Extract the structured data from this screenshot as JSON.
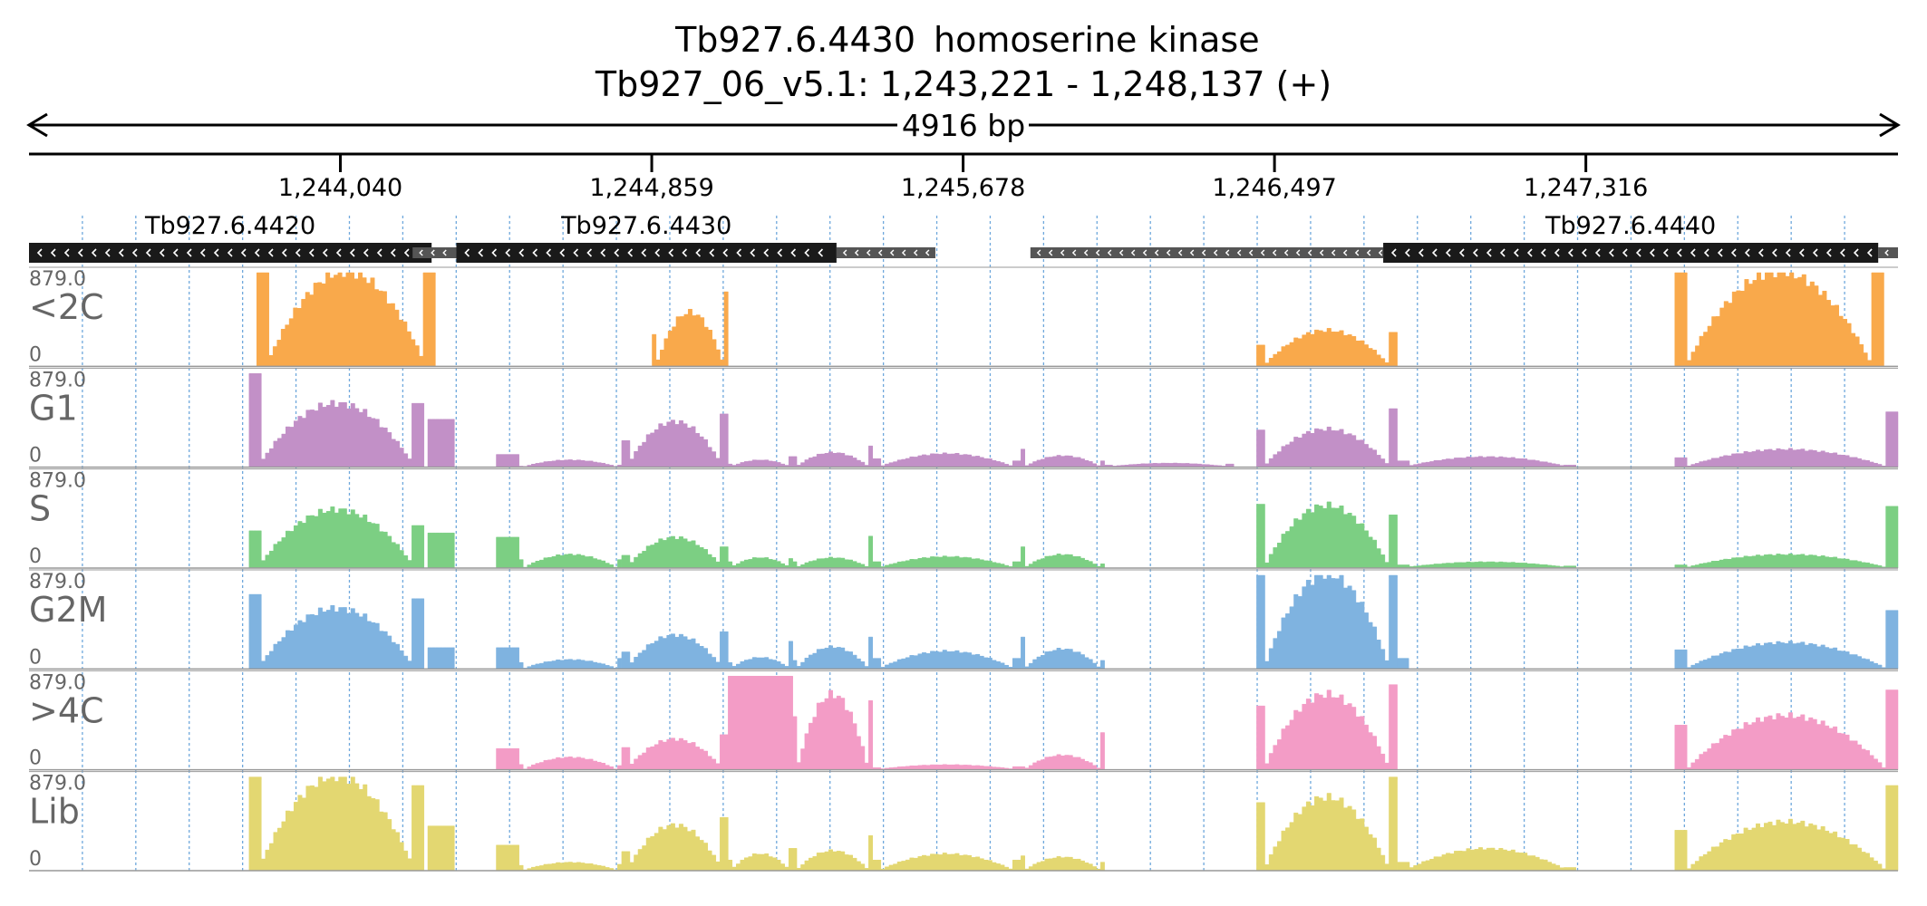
{
  "header": {
    "title_gene": "Tb927.6.4430",
    "title_product": "homoserine kinase",
    "location": "Tb927_06_v5.1: 1,243,221 - 1,248,137 (+)",
    "span_label": "4916 bp"
  },
  "colors": {
    "axis": "#000000",
    "grid": "#6fa8dc",
    "gene_body": "#1a1a1a",
    "gene_utr": "#555555",
    "track_label": "#666666",
    "clip_marker": "#a0283c"
  },
  "chart_data": {
    "type": "area",
    "x_range": [
      1243221,
      1248137
    ],
    "x_ticks": [
      1244040,
      1244859,
      1245678,
      1246497,
      1247316
    ],
    "x_tick_labels": [
      "1,244,040",
      "1,244,859",
      "1,245,678",
      "1,246,497",
      "1,247,316"
    ],
    "y_range": [
      0,
      879.0
    ],
    "y_max_label": "879.0",
    "y_min_label": "0",
    "grid": true,
    "genes": [
      {
        "name": "Tb927.6.4420",
        "strand": "-",
        "cds": [
          1243221,
          1244280
        ],
        "utr": [
          [
            1244280,
            1244330
          ]
        ]
      },
      {
        "name": "Tb927.6.4430",
        "strand": "-",
        "cds": [
          1244345,
          1245345
        ],
        "utr": [
          [
            1244230,
            1244345
          ],
          [
            1245345,
            1245605
          ]
        ]
      },
      {
        "name": "Tb927.6.4440",
        "strand": "-",
        "cds": [
          1246783,
          1248085
        ],
        "utr": [
          [
            1245855,
            1246783
          ],
          [
            1248085,
            1248137
          ]
        ]
      }
    ],
    "series": [
      {
        "name": "<2C",
        "color": "#f9a94b",
        "islands": [
          {
            "start": 1243820,
            "end": 1244290,
            "shape": "hump",
            "left_edge": 879,
            "peak": 879,
            "right_edge": 879
          },
          {
            "start": 1244860,
            "end": 1245060,
            "shape": "hump",
            "left_edge": 300,
            "peak": 500,
            "right_edge": 700
          },
          {
            "start": 1246450,
            "end": 1246820,
            "shape": "hump",
            "left_edge": 200,
            "peak": 330,
            "right_edge": 320
          },
          {
            "start": 1247550,
            "end": 1248100,
            "shape": "hump",
            "left_edge": 879,
            "peak": 879,
            "right_edge": 879
          }
        ]
      },
      {
        "name": "G1",
        "color": "#c290c7",
        "islands": [
          {
            "start": 1243800,
            "end": 1244260,
            "shape": "hump",
            "left_edge": 879,
            "peak": 590,
            "right_edge": 600
          },
          {
            "start": 1244270,
            "end": 1244340,
            "shape": "flat",
            "level": 450
          },
          {
            "start": 1244450,
            "end": 1244510,
            "shape": "flat",
            "level": 120
          },
          {
            "start": 1244510,
            "end": 1244780,
            "shape": "hump",
            "left_edge": 10,
            "peak": 60,
            "right_edge": 20
          },
          {
            "start": 1244780,
            "end": 1245060,
            "shape": "hump",
            "left_edge": 250,
            "peak": 420,
            "right_edge": 500
          },
          {
            "start": 1245060,
            "end": 1245230,
            "shape": "hump",
            "left_edge": 30,
            "peak": 60,
            "right_edge": 100
          },
          {
            "start": 1245230,
            "end": 1245440,
            "shape": "hump",
            "left_edge": 100,
            "peak": 130,
            "right_edge": 200
          },
          {
            "start": 1245440,
            "end": 1245830,
            "shape": "hump",
            "left_edge": 80,
            "peak": 120,
            "right_edge": 60
          },
          {
            "start": 1245830,
            "end": 1246050,
            "shape": "hump",
            "left_edge": 170,
            "peak": 100,
            "right_edge": 60
          },
          {
            "start": 1246050,
            "end": 1246390,
            "shape": "hump",
            "left_edge": 20,
            "peak": 30,
            "right_edge": 30
          },
          {
            "start": 1246450,
            "end": 1246820,
            "shape": "hump",
            "left_edge": 350,
            "peak": 350,
            "right_edge": 550
          },
          {
            "start": 1246820,
            "end": 1247290,
            "shape": "hump",
            "left_edge": 60,
            "peak": 90,
            "right_edge": 20
          },
          {
            "start": 1247550,
            "end": 1248137,
            "shape": "hump",
            "left_edge": 90,
            "peak": 160,
            "right_edge": 520
          }
        ]
      },
      {
        "name": "S",
        "color": "#7ccf83",
        "islands": [
          {
            "start": 1243800,
            "end": 1244260,
            "shape": "hump",
            "left_edge": 350,
            "peak": 540,
            "right_edge": 400
          },
          {
            "start": 1244270,
            "end": 1244340,
            "shape": "flat",
            "level": 330
          },
          {
            "start": 1244450,
            "end": 1244510,
            "shape": "flat",
            "level": 290
          },
          {
            "start": 1244510,
            "end": 1244780,
            "shape": "hump",
            "left_edge": 80,
            "peak": 120,
            "right_edge": 80
          },
          {
            "start": 1244780,
            "end": 1245060,
            "shape": "hump",
            "left_edge": 120,
            "peak": 280,
            "right_edge": 200
          },
          {
            "start": 1245060,
            "end": 1245230,
            "shape": "hump",
            "left_edge": 60,
            "peak": 90,
            "right_edge": 90
          },
          {
            "start": 1245230,
            "end": 1245440,
            "shape": "hump",
            "left_edge": 60,
            "peak": 90,
            "right_edge": 300
          },
          {
            "start": 1245440,
            "end": 1245830,
            "shape": "hump",
            "left_edge": 60,
            "peak": 100,
            "right_edge": 60
          },
          {
            "start": 1245830,
            "end": 1246050,
            "shape": "hump",
            "left_edge": 200,
            "peak": 120,
            "right_edge": 40
          },
          {
            "start": 1246450,
            "end": 1246820,
            "shape": "hump",
            "left_edge": 600,
            "peak": 580,
            "right_edge": 500
          },
          {
            "start": 1246820,
            "end": 1247290,
            "shape": "hump",
            "left_edge": 30,
            "peak": 50,
            "right_edge": 20
          },
          {
            "start": 1247550,
            "end": 1248137,
            "shape": "hump",
            "left_edge": 30,
            "peak": 120,
            "right_edge": 580
          }
        ]
      },
      {
        "name": "G2M",
        "color": "#7fb3e0",
        "islands": [
          {
            "start": 1243800,
            "end": 1244260,
            "shape": "hump",
            "left_edge": 700,
            "peak": 560,
            "right_edge": 660
          },
          {
            "start": 1244270,
            "end": 1244340,
            "shape": "flat",
            "level": 200
          },
          {
            "start": 1244450,
            "end": 1244510,
            "shape": "flat",
            "level": 200
          },
          {
            "start": 1244510,
            "end": 1244780,
            "shape": "hump",
            "left_edge": 60,
            "peak": 80,
            "right_edge": 100
          },
          {
            "start": 1244780,
            "end": 1245060,
            "shape": "hump",
            "left_edge": 160,
            "peak": 310,
            "right_edge": 350
          },
          {
            "start": 1245060,
            "end": 1245230,
            "shape": "hump",
            "left_edge": 60,
            "peak": 100,
            "right_edge": 260
          },
          {
            "start": 1245230,
            "end": 1245440,
            "shape": "hump",
            "left_edge": 80,
            "peak": 200,
            "right_edge": 300
          },
          {
            "start": 1245440,
            "end": 1245830,
            "shape": "hump",
            "left_edge": 100,
            "peak": 160,
            "right_edge": 100
          },
          {
            "start": 1245830,
            "end": 1246050,
            "shape": "hump",
            "left_edge": 300,
            "peak": 180,
            "right_edge": 80
          },
          {
            "start": 1246450,
            "end": 1246820,
            "shape": "hump",
            "left_edge": 879,
            "peak": 879,
            "right_edge": 879
          },
          {
            "start": 1246820,
            "end": 1246850,
            "shape": "flat",
            "level": 100
          },
          {
            "start": 1247550,
            "end": 1248137,
            "shape": "hump",
            "left_edge": 180,
            "peak": 240,
            "right_edge": 550
          }
        ]
      },
      {
        "name": ">4C",
        "color": "#f39cc6",
        "islands": [
          {
            "start": 1244450,
            "end": 1244510,
            "shape": "flat",
            "level": 200
          },
          {
            "start": 1244510,
            "end": 1244780,
            "shape": "hump",
            "left_edge": 50,
            "peak": 110,
            "right_edge": 40
          },
          {
            "start": 1244780,
            "end": 1245060,
            "shape": "hump",
            "left_edge": 210,
            "peak": 280,
            "right_edge": 330
          },
          {
            "start": 1245060,
            "end": 1245230,
            "shape": "flat",
            "level": 879
          },
          {
            "start": 1245230,
            "end": 1245440,
            "shape": "hump",
            "left_edge": 500,
            "peak": 700,
            "right_edge": 650
          },
          {
            "start": 1245440,
            "end": 1245830,
            "shape": "hump",
            "left_edge": 20,
            "peak": 40,
            "right_edge": 30
          },
          {
            "start": 1245830,
            "end": 1246050,
            "shape": "hump",
            "left_edge": 30,
            "peak": 130,
            "right_edge": 350
          },
          {
            "start": 1246450,
            "end": 1246820,
            "shape": "hump",
            "left_edge": 600,
            "peak": 700,
            "right_edge": 800
          },
          {
            "start": 1247550,
            "end": 1248137,
            "shape": "hump",
            "left_edge": 420,
            "peak": 500,
            "right_edge": 750
          }
        ]
      },
      {
        "name": "Lib",
        "color": "#e3d771",
        "islands": [
          {
            "start": 1243800,
            "end": 1244260,
            "shape": "hump",
            "left_edge": 879,
            "peak": 879,
            "right_edge": 800
          },
          {
            "start": 1244270,
            "end": 1244340,
            "shape": "flat",
            "level": 420
          },
          {
            "start": 1244450,
            "end": 1244510,
            "shape": "flat",
            "level": 240
          },
          {
            "start": 1244510,
            "end": 1244780,
            "shape": "hump",
            "left_edge": 50,
            "peak": 70,
            "right_edge": 60
          },
          {
            "start": 1244780,
            "end": 1245060,
            "shape": "hump",
            "left_edge": 180,
            "peak": 420,
            "right_edge": 500
          },
          {
            "start": 1245060,
            "end": 1245230,
            "shape": "hump",
            "left_edge": 100,
            "peak": 150,
            "right_edge": 210
          },
          {
            "start": 1245230,
            "end": 1245440,
            "shape": "hump",
            "left_edge": 210,
            "peak": 180,
            "right_edge": 330
          },
          {
            "start": 1245440,
            "end": 1245830,
            "shape": "hump",
            "left_edge": 100,
            "peak": 150,
            "right_edge": 100
          },
          {
            "start": 1245830,
            "end": 1246050,
            "shape": "hump",
            "left_edge": 140,
            "peak": 120,
            "right_edge": 80
          },
          {
            "start": 1246450,
            "end": 1246820,
            "shape": "hump",
            "left_edge": 640,
            "peak": 680,
            "right_edge": 879
          },
          {
            "start": 1246820,
            "end": 1247290,
            "shape": "hump",
            "left_edge": 80,
            "peak": 200,
            "right_edge": 30
          },
          {
            "start": 1247550,
            "end": 1248137,
            "shape": "hump",
            "left_edge": 380,
            "peak": 450,
            "right_edge": 800
          }
        ]
      }
    ]
  }
}
